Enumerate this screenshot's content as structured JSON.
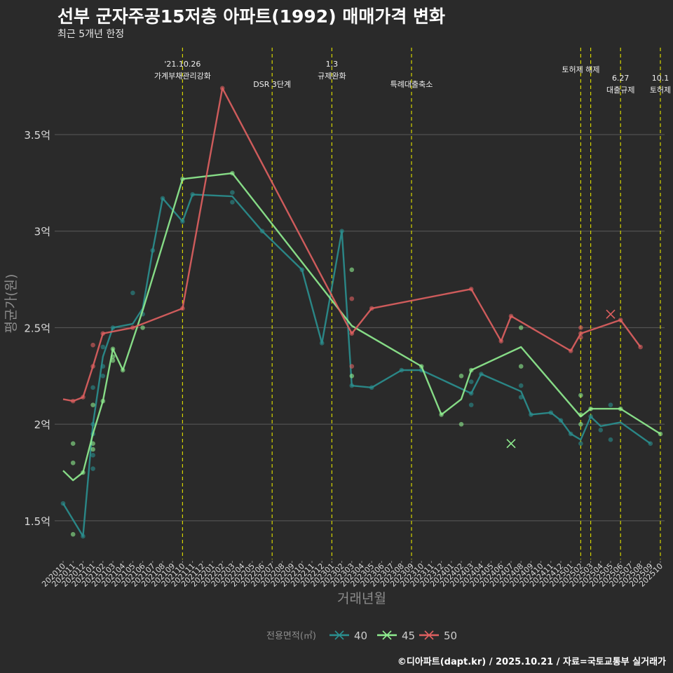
{
  "header": {
    "title": "선부 군자주공15저층 아파트(1992) 매매가격 변화",
    "subtitle": "최근 5개년 한정"
  },
  "footer": {
    "credit": "©디아파트(dapt.kr) / 2025.10.21 / 자료=국토교통부 실거래가"
  },
  "colors": {
    "background": "#2a2a2a",
    "grid": "#5a5a5a",
    "event_line": "#d4d400",
    "series_40": "#2a9090",
    "series_45": "#90ee90",
    "series_50": "#e06060"
  },
  "chart_data": {
    "type": "line",
    "title": "선부 군자주공15저층 아파트(1992) 매매가격 변화",
    "xlabel": "거래년월",
    "ylabel": "평균가(원)",
    "x_categories": [
      "202010",
      "202011",
      "202012",
      "202101",
      "202102",
      "202103",
      "202104",
      "202105",
      "202106",
      "202107",
      "202108",
      "202109",
      "202110",
      "202111",
      "202112",
      "202201",
      "202202",
      "202203",
      "202204",
      "202205",
      "202206",
      "202207",
      "202208",
      "202209",
      "202210",
      "202211",
      "202212",
      "202301",
      "202302",
      "202303",
      "202304",
      "202305",
      "202306",
      "202307",
      "202308",
      "202309",
      "202310",
      "202311",
      "202312",
      "202401",
      "202402",
      "202403",
      "202404",
      "202405",
      "202406",
      "202407",
      "202408",
      "202409",
      "202410",
      "202411",
      "202412",
      "202501",
      "202502",
      "202503",
      "202504",
      "202505",
      "202506",
      "202507",
      "202508",
      "202509",
      "202510"
    ],
    "y_ticks": [
      {
        "value": 1.5,
        "label": "1.5억"
      },
      {
        "value": 2.0,
        "label": "2억"
      },
      {
        "value": 2.5,
        "label": "2.5억"
      },
      {
        "value": 3.0,
        "label": "3억"
      },
      {
        "value": 3.5,
        "label": "3.5억"
      }
    ],
    "ylim": [
      1.3,
      3.95
    ],
    "unit": "억원",
    "grid": true,
    "legend": {
      "title": "전용면적(㎡)",
      "position": "bottom",
      "entries": [
        "40",
        "45",
        "50"
      ]
    },
    "events": [
      {
        "x": "202110",
        "line1": "'21.10.26",
        "line2": "가계부채관리강화"
      },
      {
        "x": "202207",
        "line1": "",
        "line2": "DSR 3단계"
      },
      {
        "x": "202301",
        "line1": "1.3",
        "line2": "규제완화"
      },
      {
        "x": "202309",
        "line1": "",
        "line2": "특례대출축소"
      },
      {
        "x": "202502",
        "line1": "토허제 해제",
        "line2": ""
      },
      {
        "x": "202503",
        "line1": "",
        "line2": ""
      },
      {
        "x": "202506",
        "line1": "6.27",
        "line2": "대출규제"
      },
      {
        "x": "202510",
        "line1": "10.1",
        "line2": "토허제"
      }
    ],
    "series": [
      {
        "name": "40",
        "line": [
          [
            "202010",
            1.59
          ],
          [
            "202012",
            1.42
          ],
          [
            "202101",
            2.0
          ],
          [
            "202102",
            2.35
          ],
          [
            "202103",
            2.5
          ],
          [
            "202105",
            2.52
          ],
          [
            "202106",
            2.6
          ],
          [
            "202107",
            2.9
          ],
          [
            "202108",
            3.17
          ],
          [
            "202110",
            3.05
          ],
          [
            "202111",
            3.19
          ],
          [
            "202203",
            3.18
          ],
          [
            "202206",
            3.0
          ],
          [
            "202210",
            2.8
          ],
          [
            "202212",
            2.42
          ],
          [
            "202302",
            3.0
          ],
          [
            "202303",
            2.2
          ],
          [
            "202305",
            2.19
          ],
          [
            "202308",
            2.28
          ],
          [
            "202309",
            2.28
          ],
          [
            "202310",
            2.28
          ],
          [
            "202403",
            2.16
          ],
          [
            "202404",
            2.26
          ],
          [
            "202408",
            2.17
          ],
          [
            "202409",
            2.05
          ],
          [
            "202411",
            2.06
          ],
          [
            "202412",
            2.02
          ],
          [
            "202501",
            1.95
          ],
          [
            "202502",
            1.92
          ],
          [
            "202503",
            2.04
          ],
          [
            "202504",
            1.99
          ],
          [
            "202505",
            2.0
          ],
          [
            "202506",
            2.01
          ],
          [
            "202509",
            1.9
          ]
        ],
        "points": [
          [
            "202010",
            1.59
          ],
          [
            "202012",
            1.42
          ],
          [
            "202101",
            2.0
          ],
          [
            "202101",
            1.95
          ],
          [
            "202101",
            1.84
          ],
          [
            "202101",
            1.77
          ],
          [
            "202101",
            2.19
          ],
          [
            "202102",
            2.4
          ],
          [
            "202102",
            2.3
          ],
          [
            "202102",
            2.25
          ],
          [
            "202103",
            2.5
          ],
          [
            "202105",
            2.68
          ],
          [
            "202106",
            2.57
          ],
          [
            "202107",
            2.9
          ],
          [
            "202108",
            3.17
          ],
          [
            "202110",
            3.05
          ],
          [
            "202111",
            3.19
          ],
          [
            "202203",
            3.15
          ],
          [
            "202203",
            3.2
          ],
          [
            "202206",
            3.0
          ],
          [
            "202210",
            2.8
          ],
          [
            "202212",
            2.42
          ],
          [
            "202302",
            3.0
          ],
          [
            "202303",
            2.2
          ],
          [
            "202305",
            2.19
          ],
          [
            "202308",
            2.28
          ],
          [
            "202310",
            2.28
          ],
          [
            "202403",
            2.16
          ],
          [
            "202403",
            2.1
          ],
          [
            "202403",
            2.22
          ],
          [
            "202404",
            2.26
          ],
          [
            "202408",
            2.2
          ],
          [
            "202408",
            2.14
          ],
          [
            "202409",
            2.05
          ],
          [
            "202411",
            2.06
          ],
          [
            "202412",
            2.02
          ],
          [
            "202501",
            1.95
          ],
          [
            "202502",
            1.9
          ],
          [
            "202503",
            2.04
          ],
          [
            "202504",
            1.97
          ],
          [
            "202505",
            1.92
          ],
          [
            "202505",
            2.1
          ],
          [
            "202509",
            1.9
          ]
        ],
        "cancelled": []
      },
      {
        "name": "45",
        "line": [
          [
            "202010",
            1.76
          ],
          [
            "202011",
            1.71
          ],
          [
            "202012",
            1.75
          ],
          [
            "202101",
            1.95
          ],
          [
            "202102",
            2.12
          ],
          [
            "202103",
            2.39
          ],
          [
            "202104",
            2.28
          ],
          [
            "202106",
            2.59
          ],
          [
            "202110",
            3.27
          ],
          [
            "202203",
            3.3
          ],
          [
            "202303",
            2.51
          ],
          [
            "202310",
            2.3
          ],
          [
            "202312",
            2.05
          ],
          [
            "202402",
            2.13
          ],
          [
            "202403",
            2.28
          ],
          [
            "202408",
            2.4
          ],
          [
            "202502",
            2.04
          ],
          [
            "202503",
            2.08
          ],
          [
            "202506",
            2.08
          ],
          [
            "202510",
            1.95
          ]
        ],
        "points": [
          [
            "202011",
            1.9
          ],
          [
            "202011",
            1.8
          ],
          [
            "202011",
            1.43
          ],
          [
            "202012",
            1.75
          ],
          [
            "202101",
            1.9
          ],
          [
            "202101",
            1.87
          ],
          [
            "202101",
            2.1
          ],
          [
            "202102",
            2.12
          ],
          [
            "202103",
            2.39
          ],
          [
            "202103",
            2.33
          ],
          [
            "202103",
            2.35
          ],
          [
            "202104",
            2.28
          ],
          [
            "202106",
            2.5
          ],
          [
            "202110",
            3.27
          ],
          [
            "202203",
            3.3
          ],
          [
            "202303",
            2.8
          ],
          [
            "202303",
            2.25
          ],
          [
            "202310",
            2.3
          ],
          [
            "202312",
            2.05
          ],
          [
            "202402",
            2.0
          ],
          [
            "202402",
            2.25
          ],
          [
            "202403",
            2.28
          ],
          [
            "202408",
            2.5
          ],
          [
            "202408",
            2.3
          ],
          [
            "202502",
            2.15
          ],
          [
            "202502",
            2.0
          ],
          [
            "202502",
            2.05
          ],
          [
            "202503",
            2.08
          ],
          [
            "202506",
            2.08
          ],
          [
            "202510",
            1.95
          ]
        ],
        "cancelled": [
          [
            "202407",
            1.9
          ]
        ]
      },
      {
        "name": "50",
        "line": [
          [
            "202010",
            2.13
          ],
          [
            "202011",
            2.12
          ],
          [
            "202012",
            2.14
          ],
          [
            "202101",
            2.3
          ],
          [
            "202102",
            2.47
          ],
          [
            "202105",
            2.5
          ],
          [
            "202110",
            2.6
          ],
          [
            "202202",
            3.74
          ],
          [
            "202303",
            2.47
          ],
          [
            "202305",
            2.6
          ],
          [
            "202403",
            2.7
          ],
          [
            "202406",
            2.43
          ],
          [
            "202407",
            2.56
          ],
          [
            "202501",
            2.38
          ],
          [
            "202502",
            2.47
          ],
          [
            "202506",
            2.54
          ],
          [
            "202508",
            2.4
          ]
        ],
        "points": [
          [
            "202011",
            2.12
          ],
          [
            "202012",
            2.14
          ],
          [
            "202101",
            2.3
          ],
          [
            "202101",
            2.41
          ],
          [
            "202102",
            2.47
          ],
          [
            "202105",
            2.5
          ],
          [
            "202110",
            2.6
          ],
          [
            "202202",
            3.74
          ],
          [
            "202303",
            2.47
          ],
          [
            "202303",
            2.65
          ],
          [
            "202303",
            2.3
          ],
          [
            "202305",
            2.6
          ],
          [
            "202403",
            2.7
          ],
          [
            "202406",
            2.43
          ],
          [
            "202407",
            2.56
          ],
          [
            "202501",
            2.38
          ],
          [
            "202502",
            2.47
          ],
          [
            "202502",
            2.5
          ],
          [
            "202502",
            2.45
          ],
          [
            "202506",
            2.54
          ],
          [
            "202508",
            2.4
          ]
        ],
        "cancelled": [
          [
            "202505",
            2.57
          ]
        ]
      }
    ]
  }
}
